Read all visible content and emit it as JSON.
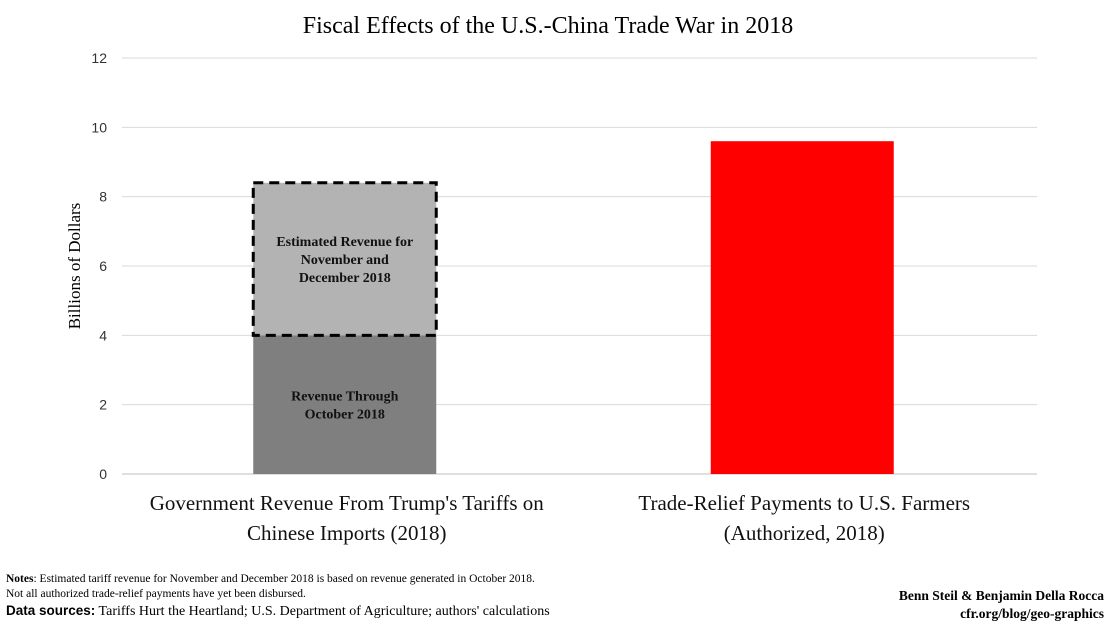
{
  "chart_data": {
    "type": "bar",
    "title": "Fiscal Effects of the U.S.-China Trade War in 2018",
    "ylabel": "Billions of Dollars",
    "xlabel": "",
    "ylim": [
      0,
      12
    ],
    "yticks": [
      0,
      2,
      4,
      6,
      8,
      10,
      12
    ],
    "grid": true,
    "stacked": true,
    "categories": [
      [
        "Government Revenue From Trump's Tariffs on",
        "Chinese Imports (2018)"
      ],
      [
        "Trade-Relief Payments to U.S. Farmers",
        "(Authorized, 2018)"
      ]
    ],
    "segments": [
      {
        "category": 0,
        "label": [
          "Revenue Through",
          "October 2018"
        ],
        "value": 4.0,
        "color": "#7f7f7f",
        "style": "solid"
      },
      {
        "category": 0,
        "label": [
          "Estimated Revenue for",
          "November and",
          "December 2018"
        ],
        "value": 4.4,
        "color": "#b3b3b3",
        "style": "dashed-outline"
      },
      {
        "category": 1,
        "label": [],
        "value": 9.6,
        "color": "#ff0000",
        "style": "solid"
      }
    ]
  },
  "notes": {
    "notes_label": "Notes",
    "notes_text": ": Estimated tariff revenue for November and December 2018 is based on revenue generated in October 2018.",
    "notes_line2": "Not all authorized trade-relief payments have yet been disbursed.",
    "sources_label": "Data sources:",
    "sources_text": " Tariffs Hurt the Heartland; U.S. Department of Agriculture; authors' calculations"
  },
  "credit": {
    "authors": "Benn Steil & Benjamin Della Rocca",
    "site": "cfr.org/blog/geo-graphics"
  }
}
